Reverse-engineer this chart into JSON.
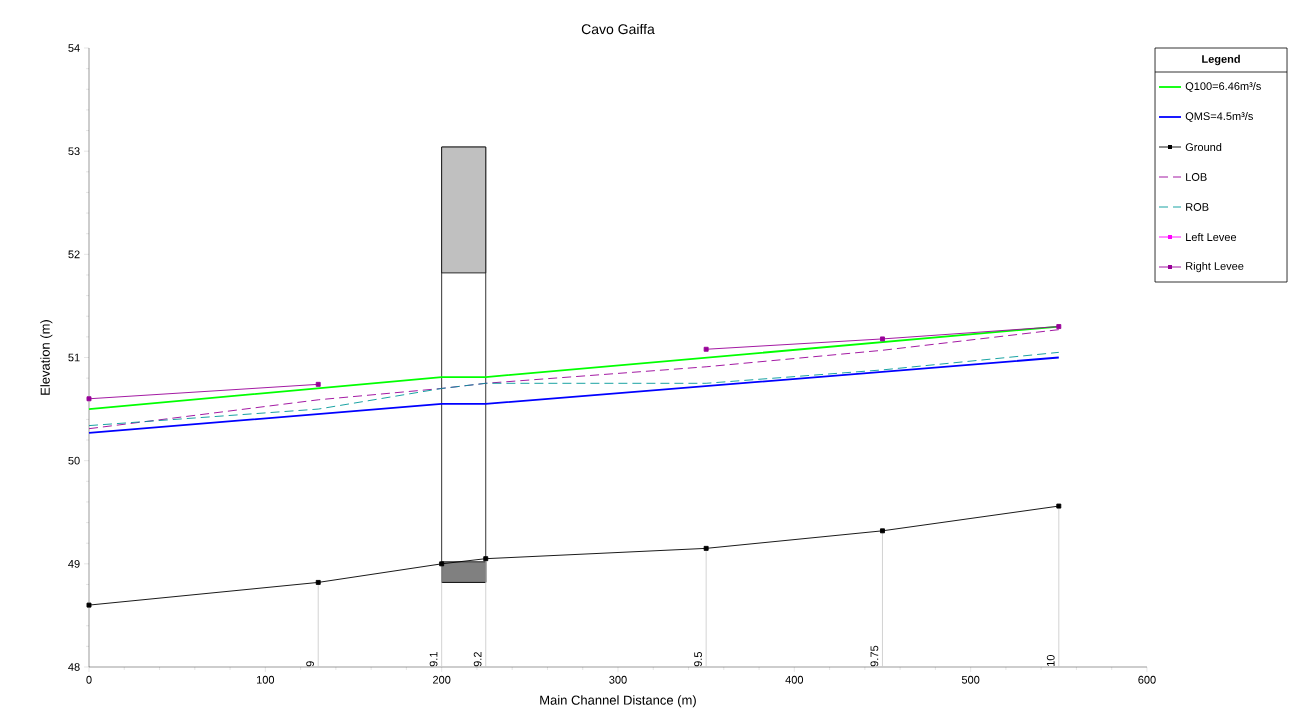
{
  "chart_data": {
    "type": "line",
    "title": "Cavo Gaiffa",
    "xlabel": "Main Channel Distance (m)",
    "ylabel": "Elevation (m)",
    "legend_title": "Legend",
    "xlim": [
      0,
      600
    ],
    "ylim": [
      48,
      54
    ],
    "xticks": [
      0,
      100,
      200,
      300,
      400,
      500,
      600
    ],
    "yticks": [
      48,
      49,
      50,
      51,
      52,
      53,
      54
    ],
    "legend": "right",
    "series": [
      {
        "name": "Q100=6.46m³/s",
        "color": "#00ff00",
        "line_style": "solid",
        "marker": "none",
        "x": [
          0,
          200,
          225,
          550
        ],
        "values": [
          50.5,
          50.81,
          50.81,
          51.3
        ]
      },
      {
        "name": "QMS=4.5m³/s",
        "color": "#0000ff",
        "line_style": "solid",
        "marker": "none",
        "x": [
          0,
          200,
          225,
          550
        ],
        "values": [
          50.27,
          50.55,
          50.55,
          51.0
        ]
      },
      {
        "name": "Ground",
        "color": "#000000",
        "line_style": "solid",
        "marker": "square",
        "x": [
          0,
          130,
          200,
          225,
          350,
          450,
          550
        ],
        "values": [
          48.6,
          48.82,
          49.0,
          49.05,
          49.15,
          49.32,
          49.56
        ]
      },
      {
        "name": "LOB",
        "color": "#990099",
        "line_style": "dashed",
        "marker": "none",
        "x": [
          0,
          130,
          200,
          225,
          350,
          450,
          550
        ],
        "values": [
          50.31,
          50.59,
          50.7,
          50.75,
          50.91,
          51.07,
          51.27
        ]
      },
      {
        "name": "ROB",
        "color": "#009999",
        "line_style": "dashed",
        "marker": "none",
        "x": [
          0,
          130,
          200,
          225,
          350,
          450,
          550
        ],
        "values": [
          50.34,
          50.5,
          50.7,
          50.75,
          50.75,
          50.88,
          51.05
        ]
      },
      {
        "name": "Left Levee",
        "color": "#ff00ff",
        "line_style": "solid",
        "marker": "square"
      },
      {
        "name": "Right Levee",
        "color": "#990099",
        "line_style": "solid",
        "marker": "square",
        "x": [
          0,
          130,
          200,
          225,
          350,
          450,
          550
        ],
        "values": [
          50.6,
          50.74,
          null,
          null,
          51.08,
          51.18,
          51.3
        ]
      },
      {
        "type": "bar",
        "color": "#ffffff",
        "x": [
          212.5
        ],
        "base": [
          48.82
        ],
        "values": [
          4.22
        ]
      },
      {
        "type": "bar",
        "color": "#c0c0c0",
        "x": [
          212.5
        ],
        "base": [
          51.82
        ],
        "values": [
          1.22
        ]
      },
      {
        "type": "bar",
        "color": "#808080",
        "x": [
          212.5
        ],
        "base": [
          48.82
        ],
        "values": [
          0.2
        ]
      }
    ],
    "annotations": [
      {
        "text": "9",
        "x": 130,
        "y": 48.82
      },
      {
        "text": "9.1",
        "x": 200,
        "y": 49.0
      },
      {
        "text": "9.2",
        "x": 225,
        "y": 49.05
      },
      {
        "text": "9.5",
        "x": 350,
        "y": 49.15
      },
      {
        "text": "9.75",
        "x": 450,
        "y": 49.32
      },
      {
        "text": "10",
        "x": 550,
        "y": 49.56
      }
    ]
  }
}
